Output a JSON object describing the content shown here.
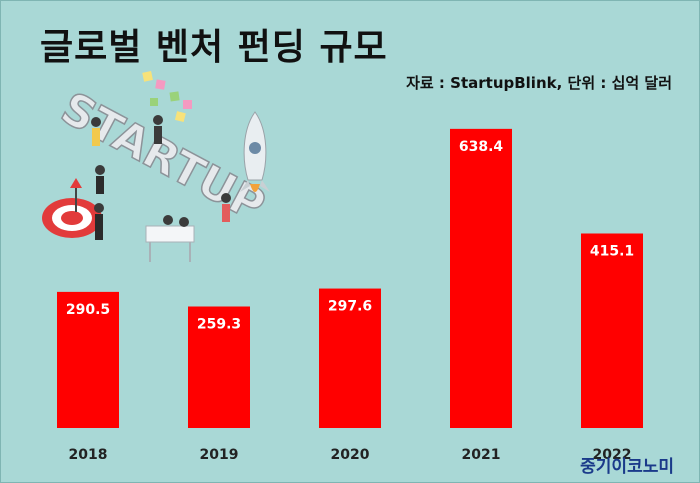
{
  "title": "글로벌 벤처 펀딩 규모",
  "source_note": "자료 : StartupBlink, 단위 : 십억 달러",
  "logo_text": "중기이코노미",
  "illustration": {
    "word": "STARTUP",
    "icons": [
      "rocket-icon",
      "target-icon",
      "people-icon",
      "sticky-notes-icon"
    ]
  },
  "colors": {
    "background": "#a9d8d6",
    "bar": "#ff0000",
    "bar_label": "#ffffff"
  },
  "chart_data": {
    "type": "bar",
    "categories": [
      "2018",
      "2019",
      "2020",
      "2021",
      "2022"
    ],
    "values": [
      290.5,
      259.3,
      297.6,
      638.4,
      415.1
    ],
    "value_labels": [
      "290.5",
      "259.3",
      "297.6",
      "638.4",
      "415.1"
    ],
    "title": "글로벌 벤처 펀딩 규모",
    "xlabel": "",
    "ylabel": "",
    "ylim": [
      0,
      700
    ],
    "grid": false,
    "legend": "none"
  }
}
